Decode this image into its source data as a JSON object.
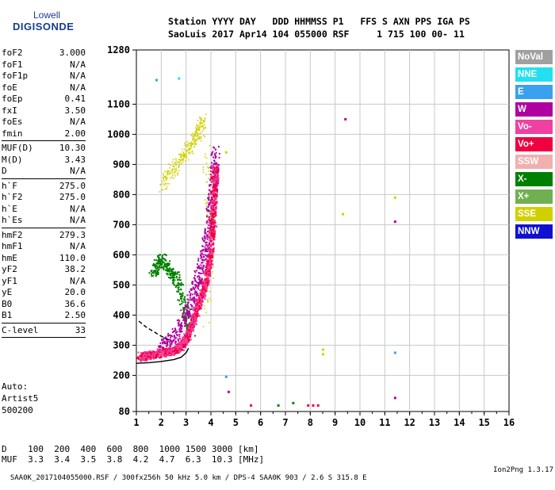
{
  "logo": {
    "line1": "Lowell",
    "line2": "DIGISONDE"
  },
  "header": {
    "row1": "Station YYYY DAY   DDD HHMMSS P1   FFS S AXN PPS IGA PS",
    "row2": "SaoLuis 2017 Apr14 104 055000 RSF     1 715 100 00- 11"
  },
  "params": {
    "group1": [
      {
        "name": "foF2",
        "value": "3.000"
      },
      {
        "name": "foF1",
        "value": "N/A"
      },
      {
        "name": "foF1p",
        "value": "N/A"
      },
      {
        "name": "foE",
        "value": "N/A"
      },
      {
        "name": "foEp",
        "value": "0.41"
      },
      {
        "name": "fxI",
        "value": "3.50"
      },
      {
        "name": "foEs",
        "value": "N/A"
      },
      {
        "name": "fmin",
        "value": "2.00"
      }
    ],
    "group2": [
      {
        "name": "MUF(D)",
        "value": "10.30"
      },
      {
        "name": "M(D)",
        "value": "3.43"
      },
      {
        "name": "D",
        "value": "N/A"
      }
    ],
    "group3": [
      {
        "name": "h`F",
        "value": "275.0"
      },
      {
        "name": "h`F2",
        "value": "275.0"
      },
      {
        "name": "h`E",
        "value": "N/A"
      },
      {
        "name": "h`Es",
        "value": "N/A"
      }
    ],
    "group4": [
      {
        "name": "hmF2",
        "value": "279.3"
      },
      {
        "name": "hmF1",
        "value": "N/A"
      },
      {
        "name": "hmE",
        "value": "110.0"
      },
      {
        "name": "yF2",
        "value": "38.2"
      },
      {
        "name": "yF1",
        "value": "N/A"
      },
      {
        "name": "yE",
        "value": "20.0"
      },
      {
        "name": "B0",
        "value": "36.6"
      },
      {
        "name": "B1",
        "value": "2.50"
      }
    ],
    "group5": [
      {
        "name": "C-level",
        "value": "33"
      }
    ]
  },
  "auto": {
    "line1": "Auto:",
    "line2": "Artist5",
    "line3": "500200"
  },
  "legend": [
    {
      "label": "NoVal",
      "color": "#a0a0a0"
    },
    {
      "label": "NNE",
      "color": "#22e0f0"
    },
    {
      "label": "E",
      "color": "#3aa0f0"
    },
    {
      "label": "W",
      "color": "#b000a0"
    },
    {
      "label": "Vo-",
      "color": "#f040a0"
    },
    {
      "label": "Vo+",
      "color": "#f00040"
    },
    {
      "label": "SSW",
      "color": "#f0b0b0"
    },
    {
      "label": "X-",
      "color": "#008000"
    },
    {
      "label": "X+",
      "color": "#70b050"
    },
    {
      "label": "SSE",
      "color": "#d0d000"
    },
    {
      "label": "NNW",
      "color": "#1010d0"
    }
  ],
  "bottom": {
    "d_row": "D    100  200  400  600  800  1000 1500 3000 [km]",
    "muf_row": "MUF  3.3  3.4  3.5  3.8  4.2  4.7  6.3  10.3 [MHz]"
  },
  "footer": {
    "left": "SAA0K_2017104055000.RSF / 300fx256h 50 kHz 5.0 km / DPS-4 SAA0K 903 / 2.6 S 315.8 E",
    "right": "Ion2Png 1.3.17"
  },
  "chart_data": {
    "type": "scatter",
    "xlim": [
      1,
      16
    ],
    "ylim": [
      80,
      1280
    ],
    "x_ticks": [
      "1",
      "2",
      "3",
      "4",
      "5",
      "6",
      "7",
      "8",
      "9",
      "10",
      "11",
      "12",
      "13",
      "14",
      "15",
      "16"
    ],
    "y_ticks": [
      "80",
      "200",
      "300",
      "400",
      "500",
      "600",
      "700",
      "800",
      "900",
      "1000",
      "1100",
      "1280"
    ],
    "grid": true,
    "trace_f2": {
      "color": "#f00040",
      "points": [
        [
          1.1,
          262
        ],
        [
          1.5,
          270
        ],
        [
          2.0,
          276
        ],
        [
          2.5,
          285
        ],
        [
          2.8,
          300
        ],
        [
          3.0,
          330
        ],
        [
          3.2,
          370
        ],
        [
          3.4,
          420
        ],
        [
          3.6,
          470
        ],
        [
          3.8,
          520
        ],
        [
          3.95,
          600
        ],
        [
          4.05,
          700
        ],
        [
          4.1,
          800
        ],
        [
          4.15,
          900
        ]
      ]
    },
    "trace_f2_magenta": {
      "color": "#b000a0",
      "points": [
        [
          2.0,
          300
        ],
        [
          2.5,
          330
        ],
        [
          3.0,
          400
        ],
        [
          3.3,
          480
        ],
        [
          3.6,
          560
        ],
        [
          3.85,
          660
        ],
        [
          4.0,
          760
        ],
        [
          4.1,
          850
        ],
        [
          4.15,
          950
        ]
      ]
    },
    "trace_x": {
      "color": "#008000",
      "points": [
        [
          1.6,
          540
        ],
        [
          1.8,
          560
        ],
        [
          2.0,
          590
        ],
        [
          2.2,
          560
        ],
        [
          2.4,
          540
        ],
        [
          2.6,
          520
        ],
        [
          2.8,
          460
        ],
        [
          3.0,
          400
        ],
        [
          3.2,
          350
        ]
      ]
    },
    "trace_yellow": {
      "color": "#d0d000",
      "points": [
        [
          2.0,
          830
        ],
        [
          2.3,
          870
        ],
        [
          2.6,
          900
        ],
        [
          2.9,
          930
        ],
        [
          3.1,
          960
        ],
        [
          3.3,
          990
        ],
        [
          3.5,
          1020
        ],
        [
          3.7,
          1050
        ],
        [
          3.9,
          780
        ],
        [
          4.0,
          720
        ],
        [
          3.8,
          360
        ]
      ]
    },
    "profile_curve": {
      "color": "#000000",
      "points": [
        [
          1.0,
          240
        ],
        [
          1.5,
          242
        ],
        [
          2.0,
          246
        ],
        [
          2.5,
          252
        ],
        [
          2.8,
          260
        ],
        [
          3.0,
          275
        ],
        [
          3.1,
          290
        ]
      ]
    },
    "dashed_curve": {
      "color": "#000000",
      "points": [
        [
          1.1,
          380
        ],
        [
          1.4,
          360
        ],
        [
          1.7,
          345
        ],
        [
          2.0,
          330
        ],
        [
          2.3,
          318
        ]
      ]
    },
    "isolated_points": [
      {
        "x": 9.4,
        "y": 1050,
        "color": "#b000a0"
      },
      {
        "x": 9.3,
        "y": 735,
        "color": "#d0d000"
      },
      {
        "x": 11.4,
        "y": 790,
        "color": "#d0d000"
      },
      {
        "x": 11.4,
        "y": 710,
        "color": "#b000a0"
      },
      {
        "x": 11.4,
        "y": 275,
        "color": "#3aa0f0"
      },
      {
        "x": 11.4,
        "y": 125,
        "color": "#b000a0"
      },
      {
        "x": 8.5,
        "y": 285,
        "color": "#d0d000"
      },
      {
        "x": 8.5,
        "y": 270,
        "color": "#d0d000"
      },
      {
        "x": 4.6,
        "y": 195,
        "color": "#3aa0f0"
      },
      {
        "x": 4.7,
        "y": 145,
        "color": "#b000a0"
      },
      {
        "x": 5.6,
        "y": 100,
        "color": "#f00040"
      },
      {
        "x": 6.7,
        "y": 100,
        "color": "#008000"
      },
      {
        "x": 7.3,
        "y": 108,
        "color": "#008000"
      },
      {
        "x": 7.9,
        "y": 100,
        "color": "#f00040"
      },
      {
        "x": 8.1,
        "y": 100,
        "color": "#f00040"
      },
      {
        "x": 8.3,
        "y": 100,
        "color": "#f00040"
      },
      {
        "x": 1.8,
        "y": 1180,
        "color": "#3aa0f0"
      },
      {
        "x": 2.7,
        "y": 1185,
        "color": "#22e0f0"
      },
      {
        "x": 4.6,
        "y": 940,
        "color": "#d0d000"
      }
    ]
  }
}
